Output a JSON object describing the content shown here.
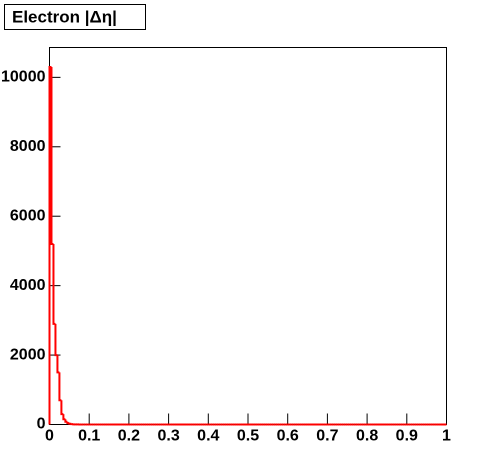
{
  "chart_data": {
    "type": "histogram",
    "title": "Electron |Δη|",
    "color": "#ff0000",
    "bins": [
      0,
      0.005,
      0.01,
      0.015,
      0.02,
      0.025,
      0.03,
      0.035,
      0.04,
      0.045,
      0.05,
      0.055,
      0.06,
      0.065,
      0.07,
      0.075,
      0.08,
      0.085,
      0.09,
      0.095,
      0.1,
      0.105,
      0.11,
      0.115,
      0.12,
      0.125,
      0.13,
      0.135,
      0.14,
      0.145,
      0.15,
      0.155,
      0.16,
      0.165,
      0.17,
      0.175,
      0.18,
      0.185,
      0.19,
      0.195,
      0.2,
      0.205,
      0.21,
      0.215,
      0.22,
      0.225,
      0.23,
      0.235,
      0.24,
      0.245,
      0.25,
      0.255,
      0.26,
      0.265,
      0.27,
      0.275,
      0.28,
      0.285,
      0.29,
      0.295,
      0.3,
      0.305,
      0.31,
      0.315,
      0.32,
      0.325,
      0.33,
      0.335,
      0.34,
      0.345,
      0.35,
      0.355,
      0.36,
      0.365,
      0.37,
      0.375,
      0.38,
      0.385,
      0.39,
      0.395,
      0.4,
      0.405,
      0.41,
      0.415,
      0.42,
      0.425,
      0.43,
      0.435,
      0.44,
      0.445,
      0.45,
      0.455,
      0.46,
      0.465,
      0.47,
      0.475,
      0.48,
      0.485,
      0.49,
      0.495,
      0.5,
      0.505,
      0.51,
      0.515,
      0.52,
      0.525,
      0.53,
      0.535,
      0.54,
      0.545,
      0.55,
      0.555,
      0.56,
      0.565,
      0.57,
      0.575,
      0.58,
      0.585,
      0.59,
      0.595,
      0.6,
      0.605,
      0.61,
      0.615,
      0.62,
      0.625,
      0.63,
      0.635,
      0.64,
      0.645,
      0.65,
      0.655,
      0.66,
      0.665,
      0.67,
      0.675,
      0.68,
      0.685,
      0.69,
      0.695,
      0.7,
      0.705,
      0.71,
      0.715,
      0.72,
      0.725,
      0.73,
      0.735,
      0.74,
      0.745,
      0.75,
      0.755,
      0.76,
      0.765,
      0.77,
      0.775,
      0.78,
      0.785,
      0.79,
      0.795,
      0.8,
      0.805,
      0.81,
      0.815,
      0.82,
      0.825,
      0.83,
      0.835,
      0.84,
      0.845,
      0.85,
      0.855,
      0.86,
      0.865,
      0.87,
      0.875,
      0.88,
      0.885,
      0.89,
      0.895,
      0.9,
      0.905,
      0.91,
      0.915,
      0.92,
      0.925,
      0.93,
      0.935,
      0.94,
      0.945,
      0.95,
      0.955,
      0.96,
      0.965,
      0.97,
      0.975,
      0.98,
      0.985,
      0.99,
      0.995,
      1
    ],
    "counts": [
      10300,
      5200,
      2900,
      2000,
      1500,
      700,
      300,
      150,
      80,
      40,
      20,
      10,
      5,
      3,
      2,
      1,
      0,
      0,
      0,
      0,
      0,
      0,
      0,
      0,
      0,
      0,
      0,
      0,
      0,
      0,
      0,
      0,
      0,
      0,
      0,
      0,
      0,
      0,
      0,
      0,
      0,
      0,
      0,
      0,
      0,
      0,
      0,
      0,
      0,
      0,
      0,
      0,
      0,
      0,
      0,
      0,
      0,
      0,
      0,
      0,
      0,
      0,
      0,
      0,
      0,
      0,
      0,
      0,
      0,
      0,
      0,
      0,
      0,
      0,
      0,
      0,
      0,
      0,
      0,
      0,
      0,
      0,
      0,
      0,
      0,
      0,
      0,
      0,
      0,
      0,
      0,
      0,
      0,
      0,
      0,
      0,
      0,
      0,
      0,
      0,
      0,
      0,
      0,
      0,
      0,
      0,
      0,
      0,
      0,
      0,
      0,
      0,
      0,
      0,
      0,
      0,
      0,
      0,
      0,
      0,
      0,
      0,
      0,
      0,
      0,
      0,
      0,
      0,
      0,
      0,
      0,
      0,
      0,
      0,
      0,
      0,
      0,
      0,
      0,
      0,
      0,
      0,
      0,
      0,
      0,
      0,
      0,
      0,
      0,
      0,
      0,
      0,
      0,
      0,
      0,
      0,
      0,
      0,
      0,
      0,
      0,
      0,
      0,
      0,
      0,
      0,
      0,
      0,
      0,
      0,
      0,
      0,
      0,
      0,
      0,
      0,
      0,
      0,
      0,
      0,
      0,
      0,
      0,
      0,
      0,
      0,
      0,
      0,
      0,
      0,
      0,
      0,
      0,
      0,
      0,
      0,
      0,
      0,
      0,
      0
    ],
    "xlim": [
      0,
      1
    ],
    "xticks": [
      0,
      0.1,
      0.2,
      0.3,
      0.4,
      0.5,
      0.6,
      0.7,
      0.8,
      0.9,
      1
    ],
    "ylim": [
      0,
      10860
    ],
    "yticks": [
      0,
      2000,
      4000,
      6000,
      8000,
      10000
    ]
  }
}
